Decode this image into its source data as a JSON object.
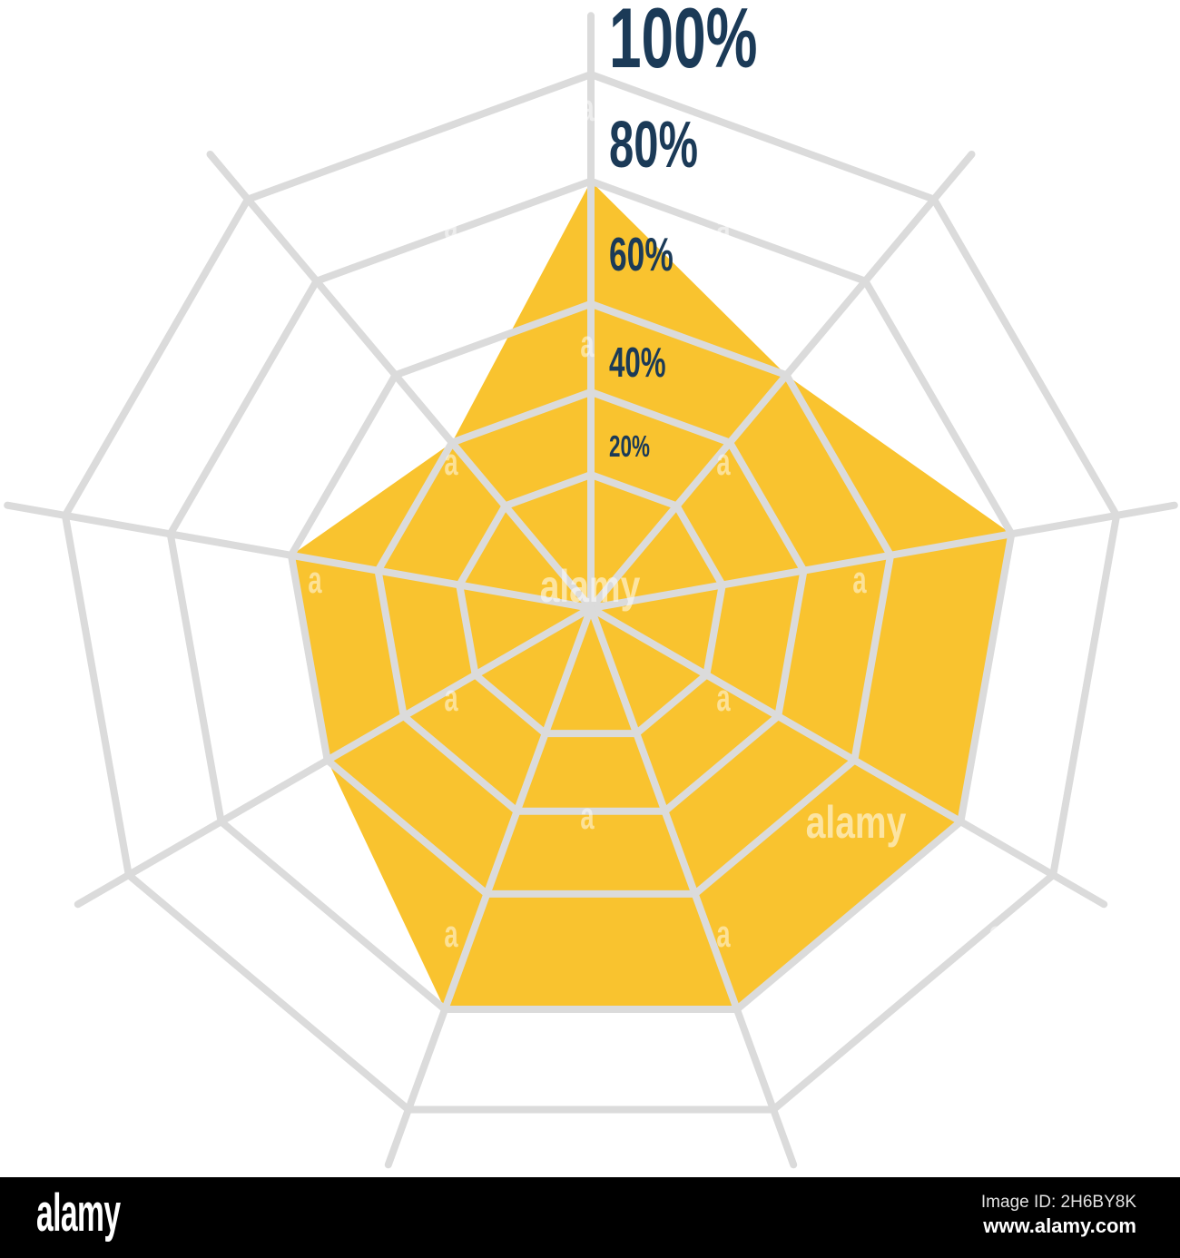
{
  "chart_data": {
    "type": "radar",
    "title": "",
    "axes_count": 9,
    "order": "clockwise-from-top",
    "values_pct": [
      80,
      60,
      80,
      80,
      80,
      80,
      60,
      60,
      40
    ],
    "ring_percents": [
      20,
      40,
      60,
      80,
      100
    ],
    "ring_radius_fractions": [
      0.25,
      0.405,
      0.57,
      0.8,
      1.0
    ],
    "axis_tick_labels": [
      "100%",
      "80%",
      "60%",
      "40%",
      "20%"
    ],
    "legend_position": "none",
    "grid": true,
    "colors": {
      "fill": "#F9C32F",
      "grid": "#DBDBDB",
      "tick_text": "#1B3A57"
    }
  },
  "watermark": {
    "word": "alamy",
    "tile_letter": "a"
  },
  "footer": {
    "brand": "alamy",
    "image_id": "Image ID: 2H6BY8K",
    "url": "www.alamy.com"
  }
}
